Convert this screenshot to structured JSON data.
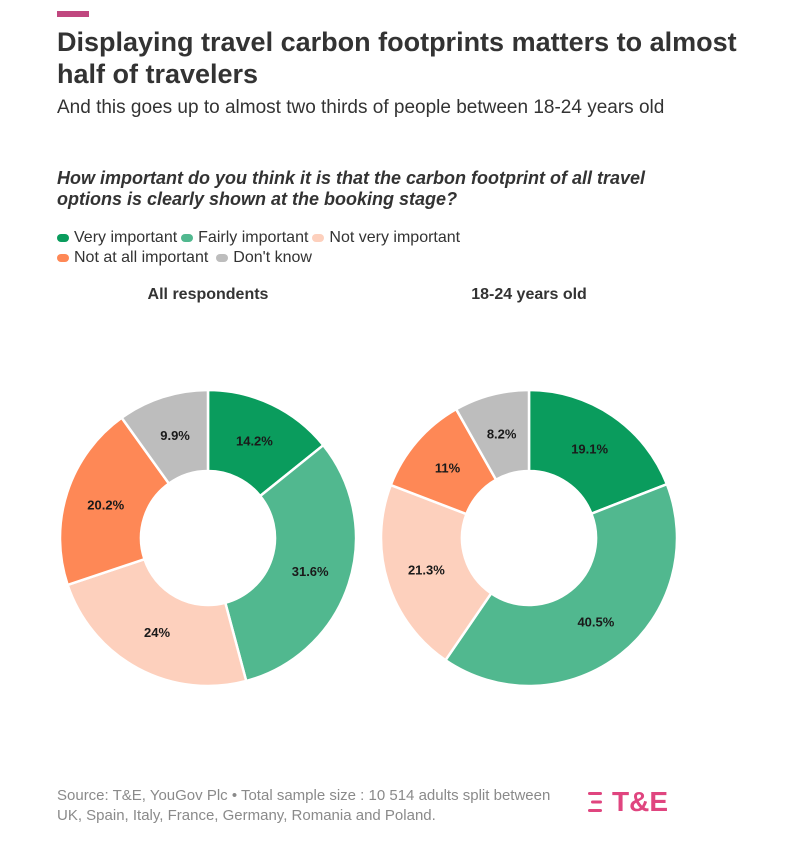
{
  "accent_color": "#c0477f",
  "title": "Displaying travel carbon footprints matters to almost half of travelers",
  "subtitle": "And this goes up to almost two thirds of people between 18-24 years old",
  "question": "How important do you think it is that the carbon footprint of all travel options is clearly shown at the booking stage?",
  "legend": [
    {
      "label": "Very important",
      "color": "#0a9c5d"
    },
    {
      "label": "Fairly important",
      "color": "#51b88f"
    },
    {
      "label": "Not very important",
      "color": "#fdd0bd"
    },
    {
      "label": "Not at all important",
      "color": "#fe8856"
    },
    {
      "label": "Don't know",
      "color": "#bdbdbd"
    }
  ],
  "chart_data": [
    {
      "type": "pie",
      "title": "All respondents",
      "categories": [
        "Very important",
        "Fairly important",
        "Not very important",
        "Not at all important",
        "Don't know"
      ],
      "values": [
        14.2,
        31.6,
        24,
        20.2,
        9.9
      ],
      "labels": [
        "14.2%",
        "31.6%",
        "24%",
        "20.2%",
        "9.9%"
      ]
    },
    {
      "type": "pie",
      "title": "18-24 years old",
      "categories": [
        "Very important",
        "Fairly important",
        "Not very important",
        "Not at all important",
        "Don't know"
      ],
      "values": [
        19.1,
        40.5,
        21.3,
        11,
        8.2
      ],
      "labels": [
        "19.1%",
        "40.5%",
        "21.3%",
        "11%",
        "8.2%"
      ]
    }
  ],
  "source": "Source: T&E, YouGov Plc • Total sample size : 10 514 adults split between UK, Spain, Italy, France, Germany, Romania and Poland.",
  "logo": {
    "text": "T&E",
    "color": "#e0457f"
  }
}
